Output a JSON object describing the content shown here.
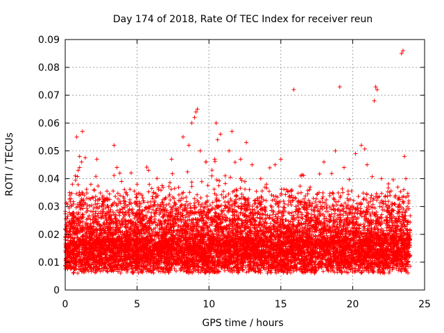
{
  "chart_data": {
    "type": "scatter",
    "title": "Day 174 of 2018, Rate Of TEC Index for receiver reun",
    "xlabel": "GPS time / hours",
    "ylabel": "ROTI / TECUs",
    "xlim": [
      0,
      25
    ],
    "ylim": [
      0,
      0.09
    ],
    "x_ticks": [
      "0",
      "5",
      "10",
      "15",
      "20",
      "25"
    ],
    "y_ticks": [
      "0",
      "0.01",
      "0.02",
      "0.03",
      "0.04",
      "0.05",
      "0.06",
      "0.07",
      "0.08",
      "0.09"
    ],
    "grid": true,
    "marker": "plus",
    "color": "#ff0000",
    "series": [
      {
        "name": "ROTI",
        "description": "dense band of ROTI samples, typically 0.005-0.025 TECU/min across 0-24 h",
        "points": [
          [
            0.1,
            0.008
          ],
          [
            0.2,
            0.012
          ],
          [
            0.3,
            0.035
          ],
          [
            0.5,
            0.038
          ],
          [
            0.7,
            0.041
          ],
          [
            0.9,
            0.043
          ],
          [
            1.0,
            0.044
          ],
          [
            1.2,
            0.057
          ],
          [
            0.8,
            0.055
          ],
          [
            1.0,
            0.048
          ],
          [
            2.2,
            0.047
          ],
          [
            2.0,
            0.036
          ],
          [
            3.4,
            0.052
          ],
          [
            3.6,
            0.044
          ],
          [
            3.8,
            0.042
          ],
          [
            4.1,
            0.032
          ],
          [
            5.0,
            0.038
          ],
          [
            5.8,
            0.043
          ],
          [
            6.5,
            0.036
          ],
          [
            7.4,
            0.047
          ],
          [
            8.2,
            0.055
          ],
          [
            8.6,
            0.052
          ],
          [
            8.8,
            0.06
          ],
          [
            9.0,
            0.062
          ],
          [
            9.1,
            0.064
          ],
          [
            9.2,
            0.065
          ],
          [
            9.4,
            0.05
          ],
          [
            9.8,
            0.046
          ],
          [
            10.2,
            0.041
          ],
          [
            10.4,
            0.047
          ],
          [
            10.6,
            0.054
          ],
          [
            10.8,
            0.056
          ],
          [
            10.5,
            0.06
          ],
          [
            11.4,
            0.05
          ],
          [
            11.6,
            0.057
          ],
          [
            12.2,
            0.047
          ],
          [
            12.6,
            0.053
          ],
          [
            13.0,
            0.045
          ],
          [
            13.6,
            0.04
          ],
          [
            14.0,
            0.038
          ],
          [
            14.6,
            0.045
          ],
          [
            15.0,
            0.047
          ],
          [
            15.4,
            0.036
          ],
          [
            15.9,
            0.072
          ],
          [
            16.4,
            0.041
          ],
          [
            17.0,
            0.036
          ],
          [
            18.0,
            0.046
          ],
          [
            18.8,
            0.05
          ],
          [
            19.1,
            0.073
          ],
          [
            19.4,
            0.044
          ],
          [
            20.2,
            0.049
          ],
          [
            20.6,
            0.052
          ],
          [
            21.0,
            0.045
          ],
          [
            21.5,
            0.068
          ],
          [
            21.6,
            0.073
          ],
          [
            21.7,
            0.072
          ],
          [
            22.0,
            0.04
          ],
          [
            22.6,
            0.034
          ],
          [
            23.4,
            0.085
          ],
          [
            23.5,
            0.086
          ],
          [
            23.6,
            0.048
          ],
          [
            23.7,
            0.04
          ],
          [
            23.9,
            0.032
          ]
        ]
      }
    ]
  }
}
